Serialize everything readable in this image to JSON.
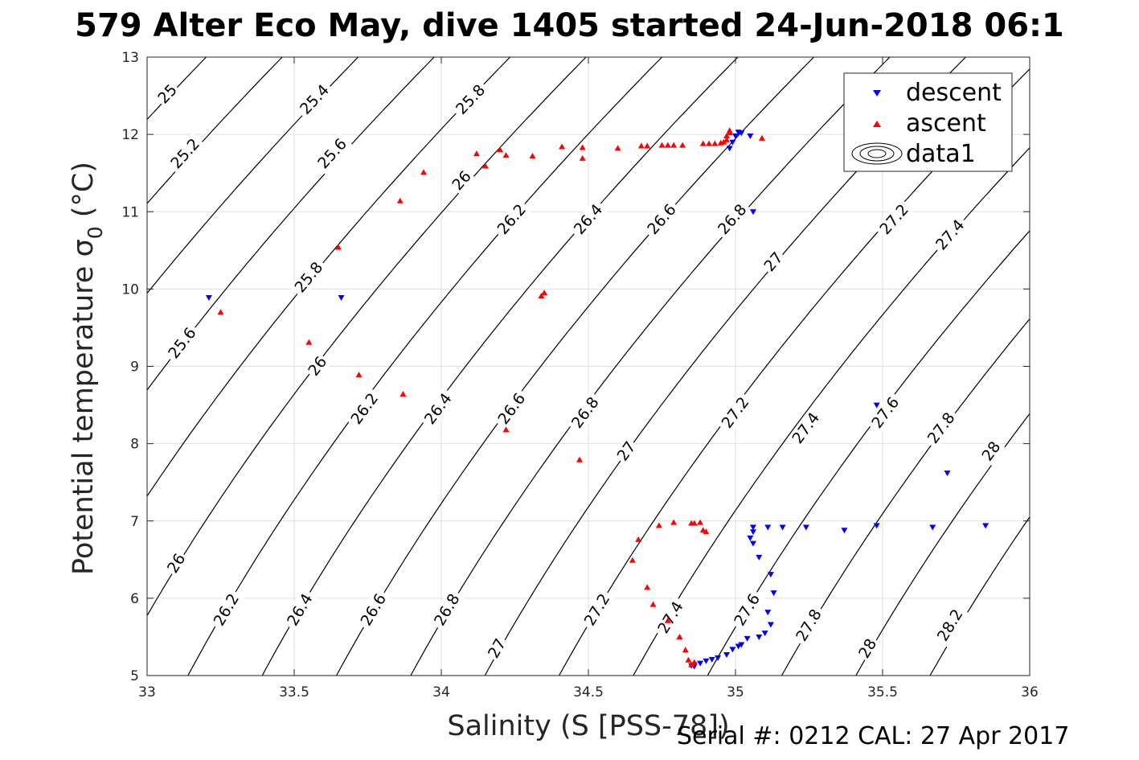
{
  "title": "579 Alter Eco May, dive 1405 started 24-Jun-2018 06:1",
  "footer": "Serial #: 0212  CAL: 27 Apr 2017",
  "colors": {
    "descent": "#0000ff",
    "ascent": "#ff0000",
    "contour": "#000000",
    "grid": "#dfdfdf",
    "axis": "#262626"
  },
  "chart_data": {
    "type": "scatter",
    "xlabel": "Salinity (S [PSS-78])",
    "ylabel_main": "Potential temperature σ",
    "ylabel_sub": "0",
    "ylabel_unit": " (°C)",
    "xlim": [
      33,
      36
    ],
    "ylim": [
      5,
      13
    ],
    "xticks": [
      "33",
      "33.5",
      "34",
      "34.5",
      "35",
      "35.5",
      "36"
    ],
    "yticks": [
      "5",
      "6",
      "7",
      "8",
      "9",
      "10",
      "11",
      "12",
      "13"
    ],
    "grid": true,
    "legend_position": "top-right",
    "legend": [
      "descent",
      "ascent",
      "data1"
    ],
    "contours": {
      "levels": [
        "25",
        "25.2",
        "25.4",
        "25.6",
        "25.8",
        "26",
        "26.2",
        "26.4",
        "26.6",
        "26.8",
        "27",
        "27.2",
        "27.4",
        "27.6",
        "27.8",
        "28",
        "28.2"
      ],
      "upper_labels": [
        {
          "text": "25",
          "s": 33.07,
          "t": 12.52
        },
        {
          "text": "25.2",
          "s": 33.13,
          "t": 11.75
        },
        {
          "text": "25.4",
          "s": 33.57,
          "t": 12.45
        },
        {
          "text": "25.6",
          "s": 33.63,
          "t": 11.75
        },
        {
          "text": "25.8",
          "s": 34.1,
          "t": 12.45
        },
        {
          "text": "26",
          "s": 34.07,
          "t": 11.4
        },
        {
          "text": "26.2",
          "s": 34.24,
          "t": 10.9
        },
        {
          "text": "26.4",
          "s": 34.5,
          "t": 10.9
        },
        {
          "text": "26.6",
          "s": 34.75,
          "t": 10.9
        },
        {
          "text": "26.8",
          "s": 34.99,
          "t": 10.9
        },
        {
          "text": "27",
          "s": 35.13,
          "t": 10.35
        },
        {
          "text": "27.2",
          "s": 35.54,
          "t": 10.9
        },
        {
          "text": "27.4",
          "s": 35.73,
          "t": 10.7
        }
      ],
      "lower_labels": [
        {
          "text": "25.6",
          "s": 33.12,
          "t": 9.3
        },
        {
          "text": "25.8",
          "s": 33.55,
          "t": 10.15
        },
        {
          "text": "26",
          "s": 33.58,
          "t": 9.0
        },
        {
          "text": "26.2",
          "s": 33.74,
          "t": 8.45
        },
        {
          "text": "26.4",
          "s": 33.99,
          "t": 8.45
        },
        {
          "text": "26.6",
          "s": 34.24,
          "t": 8.45
        },
        {
          "text": "26.8",
          "s": 34.49,
          "t": 8.4
        },
        {
          "text": "27",
          "s": 34.63,
          "t": 7.9
        },
        {
          "text": "27.2",
          "s": 35.0,
          "t": 8.4
        },
        {
          "text": "27.4",
          "s": 35.24,
          "t": 8.2
        },
        {
          "text": "27.6",
          "s": 35.51,
          "t": 8.4
        },
        {
          "text": "27.8",
          "s": 35.7,
          "t": 8.2
        },
        {
          "text": "28",
          "s": 35.87,
          "t": 7.9
        },
        {
          "text": "26",
          "s": 33.1,
          "t": 6.45
        },
        {
          "text": "26.2",
          "s": 33.27,
          "t": 5.85
        },
        {
          "text": "26.4",
          "s": 33.52,
          "t": 5.85
        },
        {
          "text": "26.6",
          "s": 33.77,
          "t": 5.85
        },
        {
          "text": "26.8",
          "s": 34.02,
          "t": 5.85
        },
        {
          "text": "27",
          "s": 34.19,
          "t": 5.35
        },
        {
          "text": "27.2",
          "s": 34.53,
          "t": 5.85
        },
        {
          "text": "27.4",
          "s": 34.78,
          "t": 5.75
        },
        {
          "text": "27.6",
          "s": 35.04,
          "t": 5.85
        },
        {
          "text": "27.8",
          "s": 35.25,
          "t": 5.65
        },
        {
          "text": "28",
          "s": 35.45,
          "t": 5.35
        },
        {
          "text": "28.2",
          "s": 35.73,
          "t": 5.65
        }
      ]
    },
    "series": [
      {
        "name": "descent",
        "marker": "triangle-down",
        "points": [
          [
            33.21,
            9.89
          ],
          [
            33.66,
            9.89
          ],
          [
            34.98,
            11.82
          ],
          [
            34.99,
            11.9
          ],
          [
            35.0,
            11.98
          ],
          [
            35.01,
            12.03
          ],
          [
            35.02,
            12.02
          ],
          [
            35.05,
            11.98
          ],
          [
            35.06,
            11.0
          ],
          [
            35.48,
            8.5
          ],
          [
            35.72,
            7.62
          ],
          [
            35.85,
            6.94
          ],
          [
            35.67,
            6.92
          ],
          [
            35.48,
            6.94
          ],
          [
            35.37,
            6.88
          ],
          [
            35.24,
            6.92
          ],
          [
            35.16,
            6.92
          ],
          [
            35.11,
            6.92
          ],
          [
            35.06,
            6.92
          ],
          [
            35.06,
            6.86
          ],
          [
            35.05,
            6.78
          ],
          [
            35.06,
            6.71
          ],
          [
            35.08,
            6.53
          ],
          [
            35.12,
            6.31
          ],
          [
            35.13,
            6.07
          ],
          [
            35.11,
            5.82
          ],
          [
            35.12,
            5.66
          ],
          [
            35.1,
            5.55
          ],
          [
            35.08,
            5.5
          ],
          [
            35.04,
            5.48
          ],
          [
            35.02,
            5.4
          ],
          [
            35.01,
            5.38
          ],
          [
            34.99,
            5.34
          ],
          [
            34.97,
            5.27
          ],
          [
            34.94,
            5.23
          ],
          [
            34.92,
            5.21
          ],
          [
            34.9,
            5.19
          ],
          [
            34.88,
            5.16
          ],
          [
            34.86,
            5.14
          ],
          [
            34.85,
            5.13
          ],
          [
            34.86,
            5.12
          ]
        ]
      },
      {
        "name": "ascent",
        "marker": "triangle-up",
        "points": [
          [
            33.25,
            9.7
          ],
          [
            33.55,
            9.31
          ],
          [
            33.65,
            10.54
          ],
          [
            33.72,
            8.89
          ],
          [
            33.86,
            11.14
          ],
          [
            33.87,
            8.64
          ],
          [
            33.94,
            11.51
          ],
          [
            34.12,
            11.75
          ],
          [
            34.15,
            11.59
          ],
          [
            34.2,
            11.8
          ],
          [
            34.22,
            11.73
          ],
          [
            34.22,
            8.18
          ],
          [
            34.31,
            11.72
          ],
          [
            34.34,
            9.91
          ],
          [
            34.35,
            9.95
          ],
          [
            34.41,
            11.84
          ],
          [
            34.47,
            7.79
          ],
          [
            34.48,
            11.83
          ],
          [
            34.48,
            11.69
          ],
          [
            34.6,
            11.82
          ],
          [
            34.68,
            11.85
          ],
          [
            34.7,
            11.85
          ],
          [
            34.75,
            11.86
          ],
          [
            34.77,
            11.86
          ],
          [
            34.79,
            11.86
          ],
          [
            34.82,
            11.86
          ],
          [
            34.89,
            11.88
          ],
          [
            34.91,
            11.88
          ],
          [
            34.93,
            11.88
          ],
          [
            34.95,
            11.89
          ],
          [
            34.96,
            11.9
          ],
          [
            34.97,
            11.93
          ],
          [
            34.97,
            11.98
          ],
          [
            34.98,
            12.02
          ],
          [
            34.98,
            12.05
          ],
          [
            35.09,
            11.95
          ],
          [
            34.65,
            6.49
          ],
          [
            34.67,
            6.76
          ],
          [
            34.7,
            6.14
          ],
          [
            34.72,
            5.92
          ],
          [
            34.74,
            6.94
          ],
          [
            34.77,
            5.71
          ],
          [
            34.79,
            6.98
          ],
          [
            34.81,
            5.5
          ],
          [
            34.83,
            5.33
          ],
          [
            34.84,
            5.2
          ],
          [
            34.85,
            5.14
          ],
          [
            34.85,
            6.97
          ],
          [
            34.86,
            6.97
          ],
          [
            34.88,
            6.98
          ],
          [
            34.89,
            6.88
          ],
          [
            34.9,
            6.86
          ],
          [
            34.86,
            5.17
          ]
        ]
      }
    ]
  }
}
